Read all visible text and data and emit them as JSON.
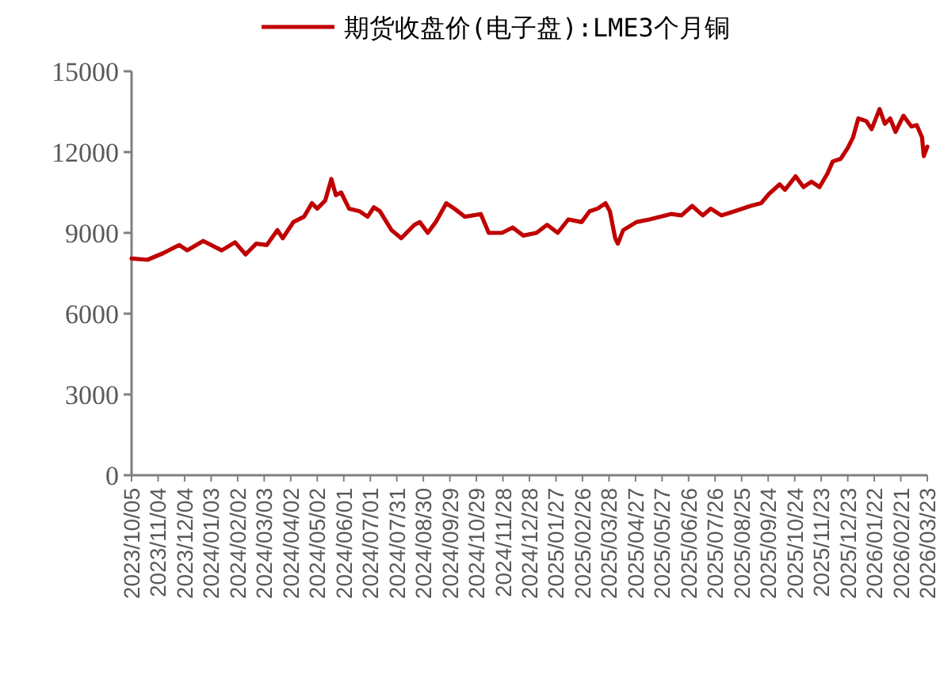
{
  "chart_data": {
    "type": "line",
    "legend": "top",
    "grid": false,
    "marker": "none",
    "line_style": "solid",
    "xlim": [
      "2023-10-05",
      "2026-03-23"
    ],
    "xticks": [
      {
        "value": "2023-10-05",
        "label": "2023/10/05"
      },
      {
        "value": "2023-11-04",
        "label": "2023/11/04"
      },
      {
        "value": "2023-12-04",
        "label": "2023/12/04"
      },
      {
        "value": "2024-01-03",
        "label": "2024/01/03"
      },
      {
        "value": "2024-02-02",
        "label": "2024/02/02"
      },
      {
        "value": "2024-03-03",
        "label": "2024/03/03"
      },
      {
        "value": "2024-04-02",
        "label": "2024/04/02"
      },
      {
        "value": "2024-05-02",
        "label": "2024/05/02"
      },
      {
        "value": "2024-06-01",
        "label": "2024/06/01"
      },
      {
        "value": "2024-07-01",
        "label": "2024/07/01"
      },
      {
        "value": "2024-07-31",
        "label": "2024/07/31"
      },
      {
        "value": "2024-08-30",
        "label": "2024/08/30"
      },
      {
        "value": "2024-09-29",
        "label": "2024/09/29"
      },
      {
        "value": "2024-10-29",
        "label": "2024/10/29"
      },
      {
        "value": "2024-11-28",
        "label": "2024/11/28"
      },
      {
        "value": "2024-12-28",
        "label": "2024/12/28"
      },
      {
        "value": "2025-01-27",
        "label": "2025/01/27"
      },
      {
        "value": "2025-02-26",
        "label": "2025/02/26"
      },
      {
        "value": "2025-03-28",
        "label": "2025/03/28"
      },
      {
        "value": "2025-04-27",
        "label": "2025/04/27"
      },
      {
        "value": "2025-05-27",
        "label": "2025/05/27"
      },
      {
        "value": "2025-06-26",
        "label": "2025/06/26"
      },
      {
        "value": "2025-07-26",
        "label": "2025/07/26"
      },
      {
        "value": "2025-08-25",
        "label": "2025/08/25"
      },
      {
        "value": "2025-09-24",
        "label": "2025/09/24"
      },
      {
        "value": "2025-10-24",
        "label": "2025/10/24"
      },
      {
        "value": "2025-11-23",
        "label": "2025/11/23"
      },
      {
        "value": "2025-12-23",
        "label": "2025/12/23"
      },
      {
        "value": "2026-01-22",
        "label": "2026/01/22"
      },
      {
        "value": "2026-02-21",
        "label": "2026/02/21"
      },
      {
        "value": "2026-03-23",
        "label": "2026/03/23"
      }
    ],
    "ylim": [
      0,
      15000
    ],
    "yticks": [
      0,
      3000,
      6000,
      9000,
      12000,
      15000
    ],
    "series": [
      {
        "name": "期货收盘价(电子盘):LME3个月铜",
        "color": "#c00000",
        "x": [
          "2023-10-05",
          "2023-10-23",
          "2023-11-10",
          "2023-11-28",
          "2023-12-07",
          "2023-12-25",
          "2024-01-15",
          "2024-01-30",
          "2024-02-11",
          "2024-02-23",
          "2024-03-06",
          "2024-03-18",
          "2024-03-24",
          "2024-04-05",
          "2024-04-17",
          "2024-04-26",
          "2024-05-02",
          "2024-05-11",
          "2024-05-18",
          "2024-05-23",
          "2024-05-29",
          "2024-06-07",
          "2024-06-19",
          "2024-06-28",
          "2024-07-05",
          "2024-07-12",
          "2024-07-25",
          "2024-08-05",
          "2024-08-20",
          "2024-08-26",
          "2024-09-04",
          "2024-09-13",
          "2024-09-25",
          "2024-10-04",
          "2024-10-16",
          "2024-11-03",
          "2024-11-12",
          "2024-11-27",
          "2024-12-09",
          "2024-12-21",
          "2025-01-05",
          "2025-01-17",
          "2025-01-29",
          "2025-02-10",
          "2025-02-25",
          "2025-03-06",
          "2025-03-15",
          "2025-03-24",
          "2025-03-29",
          "2025-04-04",
          "2025-04-07",
          "2025-04-13",
          "2025-04-28",
          "2025-05-13",
          "2025-06-06",
          "2025-06-18",
          "2025-06-30",
          "2025-07-12",
          "2025-07-21",
          "2025-08-02",
          "2025-08-17",
          "2025-09-04",
          "2025-09-16",
          "2025-09-25",
          "2025-10-07",
          "2025-10-13",
          "2025-10-25",
          "2025-11-03",
          "2025-11-12",
          "2025-11-21",
          "2025-11-30",
          "2025-12-06",
          "2025-12-15",
          "2025-12-23",
          "2025-12-29",
          "2026-01-04",
          "2026-01-13",
          "2026-01-19",
          "2026-01-28",
          "2026-02-03",
          "2026-02-09",
          "2026-02-15",
          "2026-02-24",
          "2026-03-05",
          "2026-03-11",
          "2026-03-17",
          "2026-03-19",
          "2026-03-23"
        ],
        "values": [
          8050,
          8000,
          8250,
          8550,
          8350,
          8700,
          8350,
          8650,
          8200,
          8600,
          8550,
          9100,
          8800,
          9400,
          9600,
          10100,
          9900,
          10200,
          11000,
          10400,
          10500,
          9900,
          9800,
          9600,
          9950,
          9800,
          9100,
          8800,
          9300,
          9400,
          9000,
          9400,
          10100,
          9900,
          9600,
          9700,
          9000,
          9000,
          9200,
          8900,
          9000,
          9300,
          9000,
          9500,
          9400,
          9800,
          9900,
          10100,
          9800,
          8800,
          8600,
          9100,
          9400,
          9500,
          9700,
          9650,
          10000,
          9650,
          9900,
          9650,
          9800,
          10000,
          10100,
          10450,
          10800,
          10600,
          11100,
          10700,
          10900,
          10700,
          11200,
          11650,
          11750,
          12150,
          12550,
          13250,
          13150,
          12850,
          13600,
          13050,
          13250,
          12750,
          13350,
          12950,
          13000,
          12550,
          11850,
          12200
        ]
      }
    ]
  }
}
